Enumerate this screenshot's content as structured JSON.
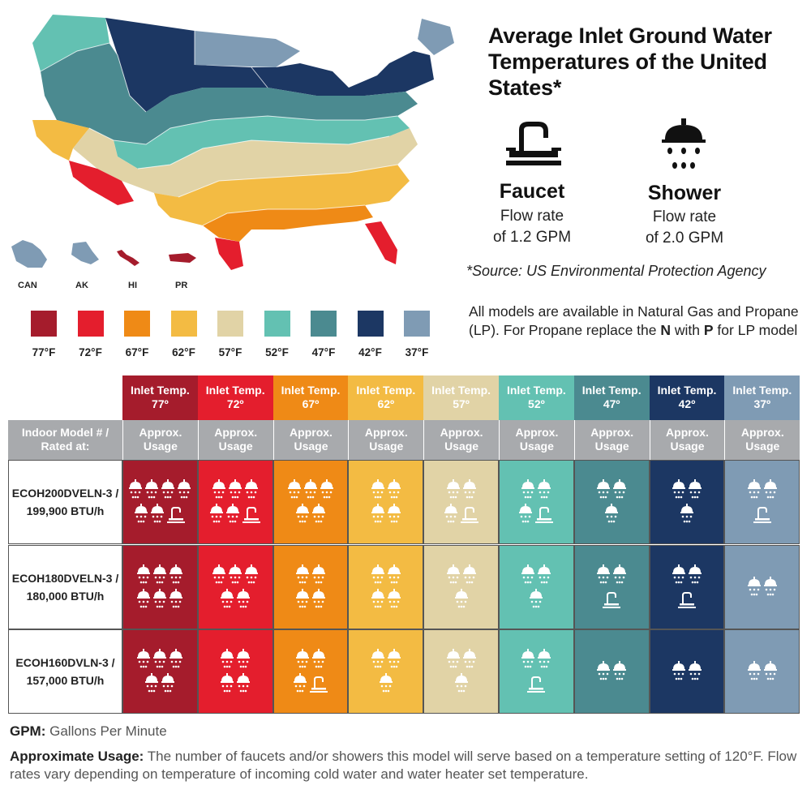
{
  "title": "Average Inlet Ground Water Temperatures of the United States*",
  "fixtures": {
    "faucet": {
      "name": "Faucet",
      "rate_line1": "Flow rate",
      "rate_line2": "of 1.2 GPM",
      "icon": "faucet-icon"
    },
    "shower": {
      "name": "Shower",
      "rate_line1": "Flow rate",
      "rate_line2": "of 2.0 GPM",
      "icon": "shower-icon"
    }
  },
  "source": "*Source: US Environmental Protection Agency",
  "models_note": {
    "part1": "All models are available in Natural Gas and Propane (LP). For Propane replace the ",
    "n": "N",
    "part2": " with ",
    "p": "P",
    "part3": " for LP model"
  },
  "territories": [
    "CAN",
    "AK",
    "HI",
    "PR"
  ],
  "legend": [
    {
      "label": "77°F",
      "color": "#a51c2c"
    },
    {
      "label": "72°F",
      "color": "#e41e2d"
    },
    {
      "label": "67°F",
      "color": "#ef8a16"
    },
    {
      "label": "62°F",
      "color": "#f3bb43"
    },
    {
      "label": "57°F",
      "color": "#e1d3a6"
    },
    {
      "label": "52°F",
      "color": "#63c1b2"
    },
    {
      "label": "47°F",
      "color": "#4b8a90"
    },
    {
      "label": "42°F",
      "color": "#1c3763"
    },
    {
      "label": "37°F",
      "color": "#7f9bb4"
    }
  ],
  "table": {
    "model_header": [
      "Indoor Model # /",
      "Rated at:"
    ],
    "usage_header": [
      "Approx.",
      "Usage"
    ],
    "columns": [
      {
        "label": "Inlet Temp.",
        "temp": "77º",
        "color": "#a51c2c"
      },
      {
        "label": "Inlet Temp.",
        "temp": "72º",
        "color": "#e41e2d"
      },
      {
        "label": "Inlet Temp.",
        "temp": "67º",
        "color": "#ef8a16"
      },
      {
        "label": "Inlet Temp.",
        "temp": "62º",
        "color": "#f3bb43"
      },
      {
        "label": "Inlet Temp.",
        "temp": "57º",
        "color": "#e1d3a6"
      },
      {
        "label": "Inlet Temp.",
        "temp": "52º",
        "color": "#63c1b2"
      },
      {
        "label": "Inlet Temp.",
        "temp": "47º",
        "color": "#4b8a90"
      },
      {
        "label": "Inlet Temp.",
        "temp": "42º",
        "color": "#1c3763"
      },
      {
        "label": "Inlet Temp.",
        "temp": "37º",
        "color": "#7f9bb4"
      }
    ],
    "rows": [
      {
        "model": "ECOH200DVELN-3 /",
        "rating": "199,900 BTU/h",
        "cells": [
          [
            [
              "S",
              "S",
              "S",
              "S"
            ],
            [
              "S",
              "S",
              "F"
            ]
          ],
          [
            [
              "S",
              "S",
              "S"
            ],
            [
              "S",
              "S",
              "F"
            ]
          ],
          [
            [
              "S",
              "S",
              "S"
            ],
            [
              "S",
              "S"
            ]
          ],
          [
            [
              "S",
              "S"
            ],
            [
              "S",
              "S"
            ]
          ],
          [
            [
              "S",
              "S"
            ],
            [
              "S",
              "F"
            ]
          ],
          [
            [
              "S",
              "S"
            ],
            [
              "S",
              "F"
            ]
          ],
          [
            [
              "S",
              "S"
            ],
            [
              "S"
            ]
          ],
          [
            [
              "S",
              "S"
            ],
            [
              "S"
            ]
          ],
          [
            [
              "S",
              "S"
            ],
            [
              "F"
            ]
          ]
        ]
      },
      {
        "model": "ECOH180DVELN-3 /",
        "rating": "180,000 BTU/h",
        "cells": [
          [
            [
              "S",
              "S",
              "S"
            ],
            [
              "S",
              "S",
              "S"
            ]
          ],
          [
            [
              "S",
              "S",
              "S"
            ],
            [
              "S",
              "S"
            ]
          ],
          [
            [
              "S",
              "S"
            ],
            [
              "S",
              "S"
            ]
          ],
          [
            [
              "S",
              "S"
            ],
            [
              "S",
              "S"
            ]
          ],
          [
            [
              "S",
              "S"
            ],
            [
              "S"
            ]
          ],
          [
            [
              "S",
              "S"
            ],
            [
              "S"
            ]
          ],
          [
            [
              "S",
              "S"
            ],
            [
              "F"
            ]
          ],
          [
            [
              "S",
              "S"
            ],
            [
              "F"
            ]
          ],
          [
            [
              "S",
              "S"
            ]
          ]
        ]
      },
      {
        "model": "ECOH160DVLN-3 /",
        "rating": "157,000 BTU/h",
        "cells": [
          [
            [
              "S",
              "S",
              "S"
            ],
            [
              "S",
              "S"
            ]
          ],
          [
            [
              "S",
              "S"
            ],
            [
              "S",
              "S"
            ]
          ],
          [
            [
              "S",
              "S"
            ],
            [
              "S",
              "F"
            ]
          ],
          [
            [
              "S",
              "S"
            ],
            [
              "S"
            ]
          ],
          [
            [
              "S",
              "S"
            ],
            [
              "S"
            ]
          ],
          [
            [
              "S",
              "S"
            ],
            [
              "F"
            ]
          ],
          [
            [
              "S",
              "S"
            ]
          ],
          [
            [
              "S",
              "S"
            ]
          ],
          [
            [
              "S",
              "S"
            ]
          ]
        ]
      }
    ]
  },
  "footnotes": {
    "gpm_key": "GPM:",
    "gpm_text": " Gallons Per Minute",
    "usage_key": "Approximate Usage:",
    "usage_text": " The number of faucets and/or showers this model will serve based on a temperature setting of 120°F. Flow rates vary depending on temperature of incoming cold water and water heater set temperature."
  }
}
